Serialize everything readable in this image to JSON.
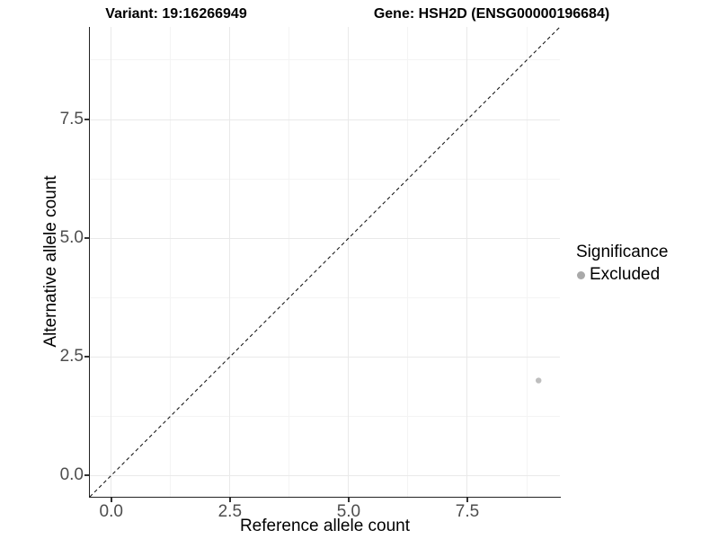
{
  "header": {
    "variant_title": "Variant: 19:16266949",
    "gene_title": "Gene: HSH2D (ENSG00000196684)"
  },
  "chart_data": {
    "type": "scatter",
    "title": "Variant: 19:16266949 — Gene: HSH2D (ENSG00000196684)",
    "xlabel": "Reference allele count",
    "ylabel": "Alternative allele count",
    "xlim": [
      -0.45,
      9.45
    ],
    "ylim": [
      -0.45,
      9.45
    ],
    "x_major_ticks": [
      0,
      2.5,
      5,
      7.5
    ],
    "x_tick_labels": [
      "0.0",
      "2.5",
      "5.0",
      "7.5"
    ],
    "y_major_ticks": [
      0,
      2.5,
      5,
      7.5
    ],
    "y_tick_labels": [
      "0.0",
      "2.5",
      "5.0",
      "7.5"
    ],
    "x_minor_ticks": [
      1.25,
      3.75,
      6.25,
      8.75
    ],
    "y_minor_ticks": [
      1.25,
      3.75,
      6.25,
      8.75
    ],
    "grid": true,
    "identity_line": {
      "style": "dashed",
      "color": "#1a1a1a",
      "from": [
        -0.45,
        -0.45
      ],
      "to": [
        9.45,
        9.45
      ]
    },
    "series": [
      {
        "name": "Excluded",
        "color": "#bebebe",
        "point_radius": 3.2,
        "points": [
          [
            9,
            2
          ]
        ]
      }
    ],
    "legend": {
      "title": "Significance",
      "position": "right",
      "entries": [
        {
          "label": "Excluded",
          "color": "#a9a9a9"
        }
      ]
    }
  },
  "colors": {
    "background": "#ffffff",
    "grid_major": "#e9e9e9",
    "grid_minor": "#f4f4f4",
    "axis_line": "#222222",
    "tick_label": "#4d4d4d"
  }
}
